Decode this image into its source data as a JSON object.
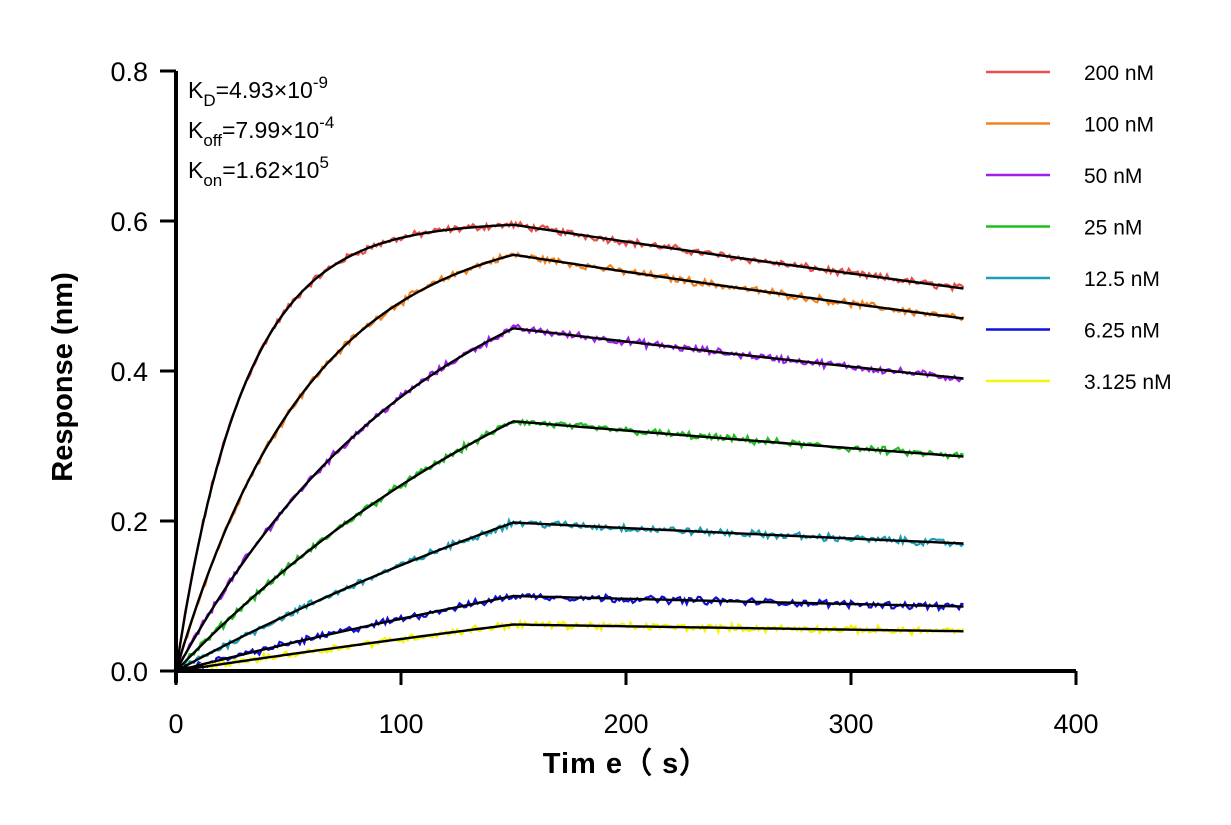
{
  "chart_data": {
    "type": "line",
    "xlabel": "Tim e（ s）",
    "ylabel": "Response (nm)",
    "xlim": [
      0,
      400
    ],
    "ylim": [
      0,
      0.8
    ],
    "x_ticks": [
      "0",
      "100",
      "200",
      "300",
      "400"
    ],
    "y_ticks": [
      "0.0",
      "0.2",
      "0.4",
      "0.6",
      "0.8"
    ],
    "grid": false,
    "legend_position": "right",
    "association_end": 150,
    "end_time": 350,
    "kon": 162000,
    "koff": 0.000799,
    "annotations": [
      {
        "base": "K",
        "sub": "D",
        "value": "=4.93×10",
        "exp": "-9"
      },
      {
        "base": "K",
        "sub": "off",
        "value": "=7.99×10",
        "exp": "-4"
      },
      {
        "base": "K",
        "sub": "on",
        "value": "=1.62×10",
        "exp": "5"
      }
    ],
    "series": [
      {
        "name": "200 nM",
        "conc_nM": 200,
        "color": "#e8504a",
        "plateau": 0.6,
        "peak": 0.595,
        "end": 0.51,
        "noise": 0.004
      },
      {
        "name": "100 nM",
        "conc_nM": 100,
        "color": "#f5821f",
        "plateau": 0.6,
        "peak": 0.555,
        "end": 0.47,
        "noise": 0.004
      },
      {
        "name": "50 nM",
        "conc_nM": 50,
        "color": "#a020f0",
        "plateau": 0.6,
        "peak": 0.457,
        "end": 0.39,
        "noise": 0.004
      },
      {
        "name": "25 nM",
        "conc_nM": 25,
        "color": "#1fbf1f",
        "plateau": 0.6,
        "peak": 0.333,
        "end": 0.286,
        "noise": 0.004
      },
      {
        "name": "12.5 nM",
        "conc_nM": 12.5,
        "color": "#1a9fb4",
        "plateau": 0.6,
        "peak": 0.198,
        "end": 0.17,
        "noise": 0.004
      },
      {
        "name": "6.25 nM",
        "conc_nM": 6.25,
        "color": "#1010d8",
        "plateau": 0.6,
        "peak": 0.1,
        "end": 0.086,
        "noise": 0.004
      },
      {
        "name": "3.125 nM",
        "conc_nM": 3.125,
        "color": "#f5f50a",
        "plateau": 0.6,
        "peak": 0.062,
        "end": 0.053,
        "noise": 0.004
      }
    ]
  }
}
